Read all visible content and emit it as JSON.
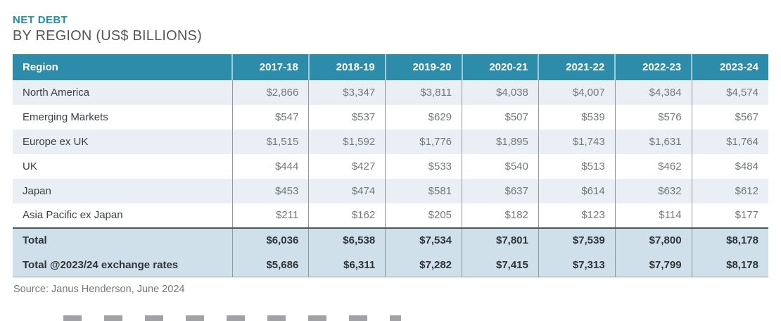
{
  "title": {
    "line1": "NET DEBT",
    "line2": "BY REGION (US$ BILLIONS)"
  },
  "table": {
    "region_header": "Region",
    "year_headers": [
      "2017-18",
      "2018-19",
      "2019-20",
      "2020-21",
      "2021-22",
      "2022-23",
      "2023-24"
    ],
    "rows": [
      {
        "region": "North America",
        "values": [
          "$2,866",
          "$3,347",
          "$3,811",
          "$4,038",
          "$4,007",
          "$4,384",
          "$4,574"
        ]
      },
      {
        "region": "Emerging Markets",
        "values": [
          "$547",
          "$537",
          "$629",
          "$507",
          "$539",
          "$576",
          "$567"
        ]
      },
      {
        "region": "Europe ex UK",
        "values": [
          "$1,515",
          "$1,592",
          "$1,776",
          "$1,895",
          "$1,743",
          "$1,631",
          "$1,764"
        ]
      },
      {
        "region": "UK",
        "values": [
          "$444",
          "$427",
          "$533",
          "$540",
          "$513",
          "$462",
          "$484"
        ]
      },
      {
        "region": "Japan",
        "values": [
          "$453",
          "$474",
          "$581",
          "$637",
          "$614",
          "$632",
          "$612"
        ]
      },
      {
        "region": "Asia Pacific ex Japan",
        "values": [
          "$211",
          "$162",
          "$205",
          "$182",
          "$123",
          "$114",
          "$177"
        ]
      }
    ],
    "total_rows": [
      {
        "region": "Total",
        "values": [
          "$6,036",
          "$6,538",
          "$7,534",
          "$7,801",
          "$7,539",
          "$7,800",
          "$8,178"
        ]
      },
      {
        "region": "Total @2023/24 exchange rates",
        "values": [
          "$5,686",
          "$6,311",
          "$7,282",
          "$7,415",
          "$7,313",
          "$7,799",
          "$8,178"
        ]
      }
    ]
  },
  "source": "Source: Janus Henderson, June 2024",
  "colors": {
    "title_teal": "#1e90ad",
    "header_background": "#2d8ca9",
    "header_text": "#ffffff",
    "alt_row_background": "#e9eff5",
    "totals_background": "#cfe0ea",
    "region_text": "#3c4045",
    "value_text": "#74787c",
    "subtitle_text": "#54565a"
  },
  "chart_data": {
    "type": "table",
    "title": "NET DEBT BY REGION (US$ BILLIONS)",
    "columns": [
      "Region",
      "2017-18",
      "2018-19",
      "2019-20",
      "2020-21",
      "2021-22",
      "2022-23",
      "2023-24"
    ],
    "rows": [
      [
        "North America",
        2866,
        3347,
        3811,
        4038,
        4007,
        4384,
        4574
      ],
      [
        "Emerging Markets",
        547,
        537,
        629,
        507,
        539,
        576,
        567
      ],
      [
        "Europe ex UK",
        1515,
        1592,
        1776,
        1895,
        1743,
        1631,
        1764
      ],
      [
        "UK",
        444,
        427,
        533,
        540,
        513,
        462,
        484
      ],
      [
        "Japan",
        453,
        474,
        581,
        637,
        614,
        632,
        612
      ],
      [
        "Asia Pacific ex Japan",
        211,
        162,
        205,
        182,
        123,
        114,
        177
      ],
      [
        "Total",
        6036,
        6538,
        7534,
        7801,
        7539,
        7800,
        8178
      ],
      [
        "Total @2023/24 exchange rates",
        5686,
        6311,
        7282,
        7415,
        7313,
        7799,
        8178
      ]
    ],
    "units": "US$ billions",
    "source": "Source: Janus Henderson, June 2024"
  }
}
